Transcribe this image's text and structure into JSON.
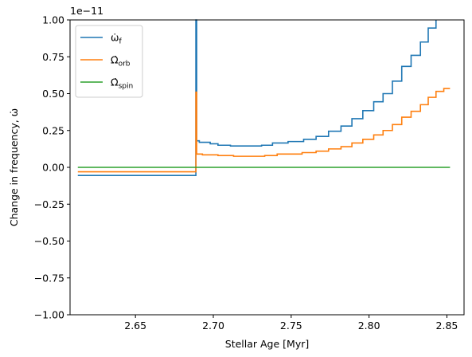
{
  "chart_data": {
    "type": "line",
    "title": "",
    "xlabel": "Stellar Age [Myr]",
    "ylabel": "Change in frequency, ω̇",
    "offset_text": "1e−11",
    "xlim": [
      2.608,
      2.861
    ],
    "ylim": [
      -1.0,
      1.0
    ],
    "x_ticks": [
      2.65,
      2.7,
      2.75,
      2.8,
      2.85
    ],
    "x_tick_labels": [
      "2.65",
      "2.70",
      "2.75",
      "2.80",
      "2.85"
    ],
    "y_ticks": [
      -1.0,
      -0.75,
      -0.5,
      -0.25,
      0.0,
      0.25,
      0.5,
      0.75,
      1.0
    ],
    "y_tick_labels": [
      "−1.00",
      "−0.75",
      "−0.50",
      "−0.25",
      "0.00",
      "0.25",
      "0.50",
      "0.75",
      "1.00"
    ],
    "grid": false,
    "legend_position": "top-left",
    "x_max": 2.852,
    "series": [
      {
        "name": "ω̇_f",
        "legend_main": "ω̇",
        "legend_sub": "f",
        "color": "#1f77b4",
        "points": [
          [
            2.613,
            -0.055
          ],
          [
            2.6888,
            -0.055
          ],
          [
            2.6888,
            1.0
          ],
          [
            2.6893,
            1.0
          ],
          [
            2.6893,
            0.18
          ],
          [
            2.691,
            0.18
          ],
          [
            2.691,
            0.17
          ],
          [
            2.698,
            0.17
          ],
          [
            2.698,
            0.16
          ],
          [
            2.703,
            0.16
          ],
          [
            2.703,
            0.15
          ],
          [
            2.711,
            0.15
          ],
          [
            2.711,
            0.145
          ],
          [
            2.731,
            0.145
          ],
          [
            2.731,
            0.15
          ],
          [
            2.738,
            0.15
          ],
          [
            2.738,
            0.165
          ],
          [
            2.748,
            0.165
          ],
          [
            2.748,
            0.175
          ],
          [
            2.758,
            0.175
          ],
          [
            2.758,
            0.19
          ],
          [
            2.766,
            0.19
          ],
          [
            2.766,
            0.21
          ],
          [
            2.774,
            0.21
          ],
          [
            2.774,
            0.245
          ],
          [
            2.782,
            0.245
          ],
          [
            2.782,
            0.28
          ],
          [
            2.789,
            0.28
          ],
          [
            2.789,
            0.33
          ],
          [
            2.796,
            0.33
          ],
          [
            2.796,
            0.385
          ],
          [
            2.803,
            0.385
          ],
          [
            2.803,
            0.445
          ],
          [
            2.809,
            0.445
          ],
          [
            2.809,
            0.5
          ],
          [
            2.815,
            0.5
          ],
          [
            2.815,
            0.585
          ],
          [
            2.821,
            0.585
          ],
          [
            2.821,
            0.685
          ],
          [
            2.827,
            0.685
          ],
          [
            2.827,
            0.76
          ],
          [
            2.833,
            0.76
          ],
          [
            2.833,
            0.85
          ],
          [
            2.838,
            0.85
          ],
          [
            2.838,
            0.945
          ],
          [
            2.843,
            0.945
          ],
          [
            2.843,
            1.0
          ]
        ]
      },
      {
        "name": "Ω̇_orb",
        "legend_main": "Ω̇",
        "legend_sub": "orb",
        "color": "#ff7f0e",
        "points": [
          [
            2.613,
            -0.03
          ],
          [
            2.6888,
            -0.03
          ],
          [
            2.6888,
            0.51
          ],
          [
            2.6893,
            0.51
          ],
          [
            2.6893,
            0.09
          ],
          [
            2.693,
            0.09
          ],
          [
            2.693,
            0.085
          ],
          [
            2.703,
            0.085
          ],
          [
            2.703,
            0.08
          ],
          [
            2.713,
            0.08
          ],
          [
            2.713,
            0.075
          ],
          [
            2.733,
            0.075
          ],
          [
            2.733,
            0.08
          ],
          [
            2.741,
            0.08
          ],
          [
            2.741,
            0.09
          ],
          [
            2.757,
            0.09
          ],
          [
            2.757,
            0.1
          ],
          [
            2.766,
            0.1
          ],
          [
            2.766,
            0.11
          ],
          [
            2.774,
            0.11
          ],
          [
            2.774,
            0.125
          ],
          [
            2.782,
            0.125
          ],
          [
            2.782,
            0.14
          ],
          [
            2.789,
            0.14
          ],
          [
            2.789,
            0.165
          ],
          [
            2.796,
            0.165
          ],
          [
            2.796,
            0.19
          ],
          [
            2.803,
            0.19
          ],
          [
            2.803,
            0.22
          ],
          [
            2.809,
            0.22
          ],
          [
            2.809,
            0.25
          ],
          [
            2.815,
            0.25
          ],
          [
            2.815,
            0.29
          ],
          [
            2.821,
            0.29
          ],
          [
            2.821,
            0.34
          ],
          [
            2.827,
            0.34
          ],
          [
            2.827,
            0.38
          ],
          [
            2.833,
            0.38
          ],
          [
            2.833,
            0.425
          ],
          [
            2.838,
            0.425
          ],
          [
            2.838,
            0.475
          ],
          [
            2.843,
            0.475
          ],
          [
            2.843,
            0.515
          ],
          [
            2.848,
            0.515
          ],
          [
            2.848,
            0.535
          ],
          [
            2.852,
            0.535
          ]
        ]
      },
      {
        "name": "Ω̇_spin",
        "legend_main": "Ω̇",
        "legend_sub": "spin",
        "color": "#2ca02c",
        "points": [
          [
            2.613,
            0.0
          ],
          [
            2.852,
            0.0
          ]
        ]
      }
    ]
  }
}
